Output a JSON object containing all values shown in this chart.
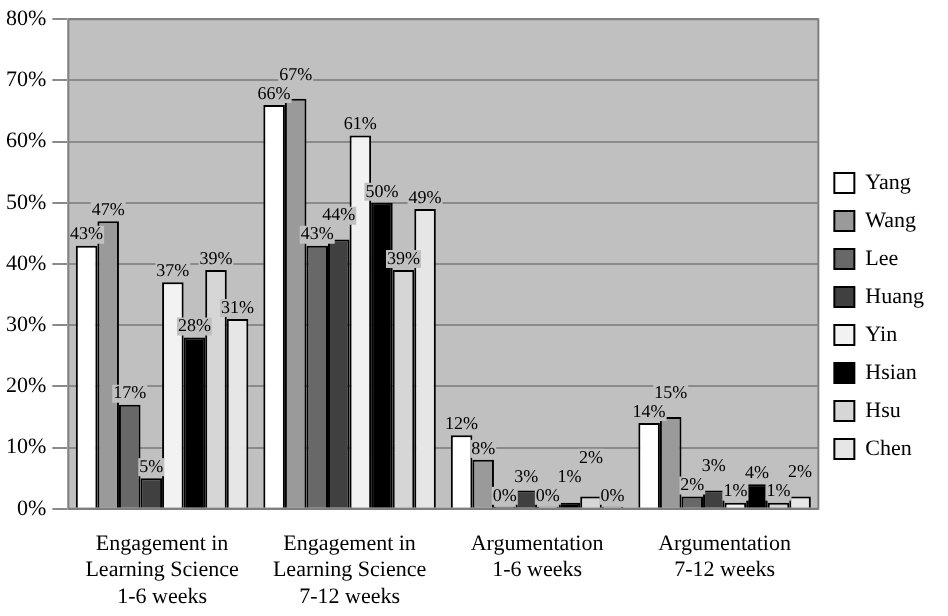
{
  "chart_data": {
    "type": "bar",
    "categories": [
      "Engagement in Learning Science 1-6 weeks",
      "Engagement in Learning Science 7-12 weeks",
      "Argumentation 1-6 weeks",
      "Argumentation 7-12 weeks"
    ],
    "series": [
      {
        "name": "Yang",
        "color": "#ffffff",
        "values": [
          43,
          66,
          12,
          14
        ],
        "value_labels": [
          "43%",
          "66%",
          "12%",
          "14%"
        ]
      },
      {
        "name": "Wang",
        "color": "#9a9a9a",
        "values": [
          47,
          67,
          8,
          15
        ],
        "value_labels": [
          "47%",
          "67%",
          "8%",
          "15%"
        ]
      },
      {
        "name": "Lee",
        "color": "#686868",
        "values": [
          17,
          43,
          0,
          2
        ],
        "value_labels": [
          "17%",
          "43%",
          "0%",
          "2%"
        ]
      },
      {
        "name": "Huang",
        "color": "#404040",
        "values": [
          5,
          44,
          3,
          3
        ],
        "value_labels": [
          "5%",
          "44%",
          "3%",
          "3%"
        ]
      },
      {
        "name": "Yin",
        "color": "#f2f2f2",
        "values": [
          37,
          61,
          0,
          1
        ],
        "value_labels": [
          "37%",
          "61%",
          "0%",
          "1%"
        ]
      },
      {
        "name": "Hsian",
        "color": "#000000",
        "values": [
          28,
          50,
          1,
          4
        ],
        "value_labels": [
          "28%",
          "50%",
          "1%",
          "4%"
        ]
      },
      {
        "name": "Hsu",
        "color": "#d6d6d6",
        "values": [
          39,
          39,
          2,
          1
        ],
        "value_labels": [
          "39%",
          "39%",
          "2%",
          "1%"
        ]
      },
      {
        "name": "Chen",
        "color": "#e6e6e6",
        "values": [
          31,
          49,
          0,
          2
        ],
        "value_labels": [
          "31%",
          "49%",
          "0%",
          "2%"
        ]
      }
    ],
    "ylim": [
      0,
      80
    ],
    "yticks": [
      {
        "value": 0,
        "label": "0%"
      },
      {
        "value": 10,
        "label": "10%"
      },
      {
        "value": 20,
        "label": "20%"
      },
      {
        "value": 30,
        "label": "30%"
      },
      {
        "value": 40,
        "label": "40%"
      },
      {
        "value": 50,
        "label": "50%"
      },
      {
        "value": 60,
        "label": "60%"
      },
      {
        "value": 70,
        "label": "70%"
      },
      {
        "value": 80,
        "label": "80%"
      }
    ],
    "grid": "y",
    "legend": "right"
  }
}
